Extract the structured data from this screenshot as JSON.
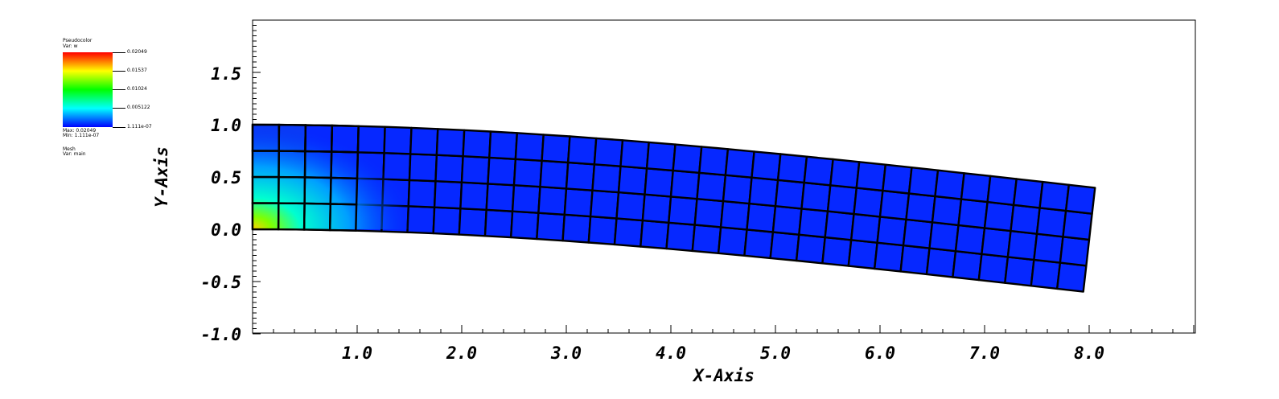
{
  "legend": {
    "pseudocolor_title": "Pseudocolor",
    "pseudocolor_var": "Var: w",
    "ticks": [
      "0.02049",
      "0.01537",
      "0.01024",
      "0.005122",
      "1.111e-07"
    ],
    "max_label": "Max: 0.02049",
    "min_label": "Min: 1.111e-07",
    "mesh_title": "Mesh",
    "mesh_var": "Var: main"
  },
  "axes": {
    "x_title": "X-Axis",
    "y_title": "Y-Axis",
    "x_tick_labels": [
      "1.0",
      "2.0",
      "3.0",
      "4.0",
      "5.0",
      "6.0",
      "7.0",
      "8.0"
    ],
    "y_tick_labels": [
      "1.5",
      "1.0",
      "0.5",
      "0.0",
      "-0.5",
      "-1.0"
    ]
  },
  "chart_data": {
    "type": "heatmap",
    "title": "",
    "xlabel": "X-Axis",
    "ylabel": "Y-Axis",
    "xlim": [
      0,
      9.0
    ],
    "ylim": [
      -1.0,
      2.0
    ],
    "grid": false,
    "colorbar": {
      "variable": "w",
      "min": 1.111e-07,
      "max": 0.02049,
      "colormap": "rainbow"
    },
    "mesh": {
      "variable": "main",
      "rows": 4,
      "cols": 32,
      "undeformed_length": 8.0,
      "undeformed_height": 1.0,
      "tip_deflection": -0.6,
      "hot_spot": {
        "x": 0.0,
        "y": 0.0,
        "value": 0.02049
      }
    }
  }
}
